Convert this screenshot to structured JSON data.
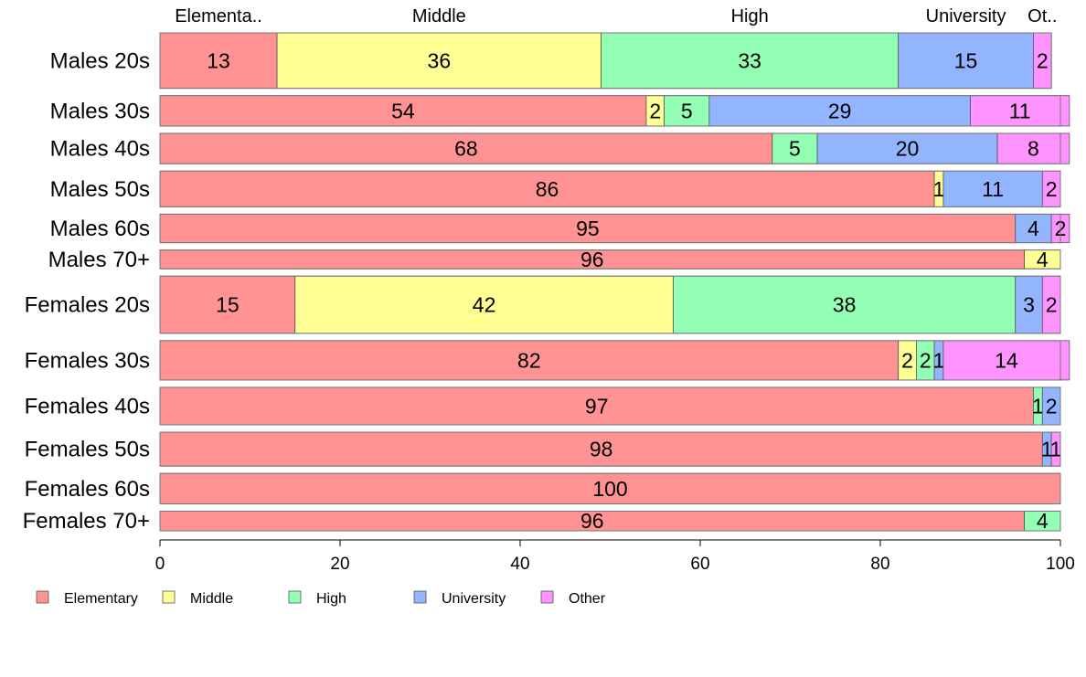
{
  "chart_data": {
    "type": "bar",
    "orientation": "horizontal",
    "stacked": true,
    "variable_width_rows": true,
    "title": "",
    "xlabel": "",
    "ylabel": "",
    "xlim": [
      0,
      100
    ],
    "x_ticks": [
      "0",
      "20",
      "40",
      "60",
      "80",
      "100"
    ],
    "grid": false,
    "legend_position": "bottom-left",
    "series": [
      {
        "name": "Elementary",
        "color": "#ff9393"
      },
      {
        "name": "Middle",
        "color": "#ffff93"
      },
      {
        "name": "High",
        "color": "#93ffb5"
      },
      {
        "name": "University",
        "color": "#93b5ff"
      },
      {
        "name": "Other",
        "color": "#ff93ff"
      }
    ],
    "top_labels": [
      "Elementa..",
      "Middle",
      "High",
      "University",
      "Ot.."
    ],
    "rows": [
      {
        "label": "Males 20s",
        "weight": 62,
        "values": [
          13,
          36,
          33,
          15,
          2
        ]
      },
      {
        "label": "Males 30s",
        "weight": 34,
        "values": [
          54,
          2,
          5,
          29,
          11
        ]
      },
      {
        "label": "Males 40s",
        "weight": 34,
        "values": [
          68,
          0,
          5,
          20,
          8
        ]
      },
      {
        "label": "Males 50s",
        "weight": 40,
        "values": [
          86,
          1,
          0,
          11,
          2
        ]
      },
      {
        "label": "Males 60s",
        "weight": 32,
        "values": [
          95,
          0,
          0,
          4,
          2
        ]
      },
      {
        "label": "Males 70+",
        "weight": 21,
        "values": [
          96,
          4,
          0,
          0,
          0
        ]
      },
      {
        "label": "Females 20s",
        "weight": 64,
        "values": [
          15,
          42,
          38,
          3,
          2
        ]
      },
      {
        "label": "Females 30s",
        "weight": 44,
        "values": [
          82,
          2,
          2,
          1,
          14
        ]
      },
      {
        "label": "Females 40s",
        "weight": 42,
        "values": [
          97,
          0,
          1,
          2,
          0
        ]
      },
      {
        "label": "Females 50s",
        "weight": 38,
        "values": [
          98,
          0,
          0,
          1,
          1
        ]
      },
      {
        "label": "Females 60s",
        "weight": 34,
        "values": [
          100,
          0,
          0,
          0,
          0
        ]
      },
      {
        "label": "Females 70+",
        "weight": 22,
        "values": [
          96,
          0,
          4,
          0,
          0
        ]
      }
    ]
  }
}
